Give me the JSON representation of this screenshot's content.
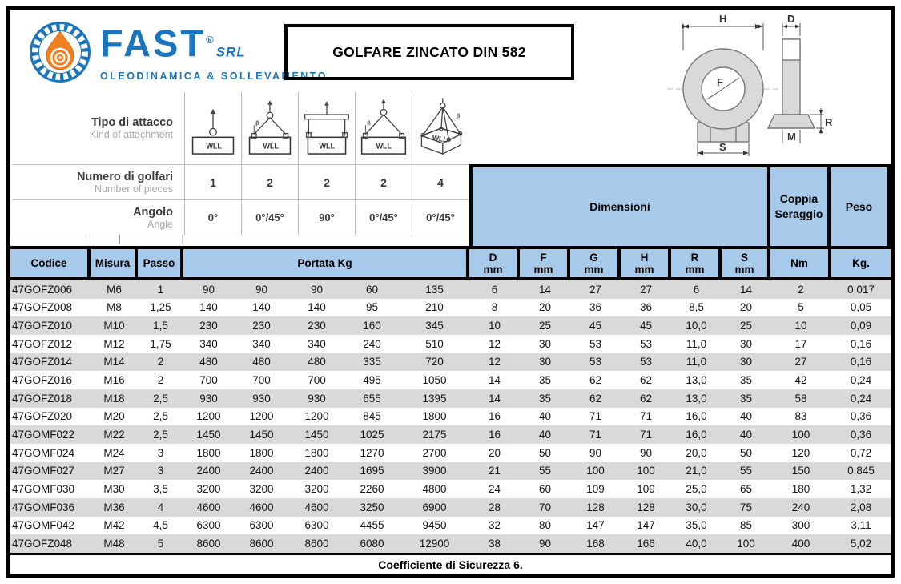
{
  "brand": {
    "name": "FAST",
    "registered": "®",
    "suffix": "SRL",
    "tagline": "OLEODINAMICA & SOLLEVAMENTO"
  },
  "title": "GOLFARE ZINCATO DIN 582",
  "colors": {
    "header_blue": "#a7c9ea",
    "row_gray": "#d9d9d9",
    "logo_blue": "#1b75bc",
    "logo_orange": "#f08123"
  },
  "drawing": {
    "front": {
      "width_label": "H",
      "hole_label": "F",
      "base_label": "S"
    },
    "side": {
      "diameter_label": "D",
      "radius_label": "R",
      "thread_label": "M"
    }
  },
  "attachment": {
    "wll_label": "WLL",
    "beta_label": "β",
    "rows": [
      {
        "label": "Tipo di attacco",
        "sublabel": "Kind of attachment"
      },
      {
        "label": "Numero di golfari",
        "sublabel": "Number of pieces"
      },
      {
        "label": "Angolo",
        "sublabel": "Angle"
      }
    ],
    "columns": [
      {
        "icon": "single-vertical-lift-icon",
        "pieces": "1",
        "angle": "0°"
      },
      {
        "icon": "two-leg-sling-icon",
        "pieces": "2",
        "angle": "0°/45°"
      },
      {
        "icon": "spreader-beam-lift-icon",
        "pieces": "2",
        "angle": "90°"
      },
      {
        "icon": "two-leg-wide-sling-icon",
        "pieces": "2",
        "angle": "0°/45°"
      },
      {
        "icon": "four-leg-sling-icon",
        "pieces": "4",
        "angle": "0°/45°"
      }
    ]
  },
  "table": {
    "headers": {
      "codice": "Codice",
      "misura": "Misura",
      "passo": "Passo",
      "portata": "Portata Kg",
      "dimensioni": "Dimensioni",
      "coppia": "Coppia Seraggio",
      "peso": "Peso",
      "dim_cols": [
        "D",
        "F",
        "G",
        "H",
        "R",
        "S"
      ],
      "dim_unit": "mm",
      "coppia_unit": "Nm",
      "peso_unit": "Kg."
    },
    "rows": [
      [
        "47GOFZ006",
        "M6",
        "1",
        "90",
        "90",
        "90",
        "60",
        "135",
        "6",
        "14",
        "27",
        "27",
        "6",
        "14",
        "2",
        "0,017"
      ],
      [
        "47GOFZ008",
        "M8",
        "1,25",
        "140",
        "140",
        "140",
        "95",
        "210",
        "8",
        "20",
        "36",
        "36",
        "8,5",
        "20",
        "5",
        "0,05"
      ],
      [
        "47GOFZ010",
        "M10",
        "1,5",
        "230",
        "230",
        "230",
        "160",
        "345",
        "10",
        "25",
        "45",
        "45",
        "10,0",
        "25",
        "10",
        "0,09"
      ],
      [
        "47GOFZ012",
        "M12",
        "1,75",
        "340",
        "340",
        "340",
        "240",
        "510",
        "12",
        "30",
        "53",
        "53",
        "11,0",
        "30",
        "17",
        "0,16"
      ],
      [
        "47GOFZ014",
        "M14",
        "2",
        "480",
        "480",
        "480",
        "335",
        "720",
        "12",
        "30",
        "53",
        "53",
        "11,0",
        "30",
        "27",
        "0,16"
      ],
      [
        "47GOFZ016",
        "M16",
        "2",
        "700",
        "700",
        "700",
        "495",
        "1050",
        "14",
        "35",
        "62",
        "62",
        "13,0",
        "35",
        "42",
        "0,24"
      ],
      [
        "47GOFZ018",
        "M18",
        "2,5",
        "930",
        "930",
        "930",
        "655",
        "1395",
        "14",
        "35",
        "62",
        "62",
        "13,0",
        "35",
        "58",
        "0,24"
      ],
      [
        "47GOFZ020",
        "M20",
        "2,5",
        "1200",
        "1200",
        "1200",
        "845",
        "1800",
        "16",
        "40",
        "71",
        "71",
        "16,0",
        "40",
        "83",
        "0,36"
      ],
      [
        "47GOMF022",
        "M22",
        "2,5",
        "1450",
        "1450",
        "1450",
        "1025",
        "2175",
        "16",
        "40",
        "71",
        "71",
        "16,0",
        "40",
        "100",
        "0,36"
      ],
      [
        "47GOMF024",
        "M24",
        "3",
        "1800",
        "1800",
        "1800",
        "1270",
        "2700",
        "20",
        "50",
        "90",
        "90",
        "20,0",
        "50",
        "120",
        "0,72"
      ],
      [
        "47GOMF027",
        "M27",
        "3",
        "2400",
        "2400",
        "2400",
        "1695",
        "3900",
        "21",
        "55",
        "100",
        "100",
        "21,0",
        "55",
        "150",
        "0,845"
      ],
      [
        "47GOMF030",
        "M30",
        "3,5",
        "3200",
        "3200",
        "3200",
        "2260",
        "4800",
        "24",
        "60",
        "109",
        "109",
        "25,0",
        "65",
        "180",
        "1,32"
      ],
      [
        "47GOMF036",
        "M36",
        "4",
        "4600",
        "4600",
        "4600",
        "3250",
        "6900",
        "28",
        "70",
        "128",
        "128",
        "30,0",
        "75",
        "240",
        "2,08"
      ],
      [
        "47GOMF042",
        "M42",
        "4,5",
        "6300",
        "6300",
        "6300",
        "4455",
        "9450",
        "32",
        "80",
        "147",
        "147",
        "35,0",
        "85",
        "300",
        "3,11"
      ],
      [
        "47GOFZ048",
        "M48",
        "5",
        "8600",
        "8600",
        "8600",
        "6080",
        "12900",
        "38",
        "90",
        "168",
        "166",
        "40,0",
        "100",
        "400",
        "5,02"
      ]
    ],
    "footer": "Coefficiente di Sicurezza 6."
  }
}
